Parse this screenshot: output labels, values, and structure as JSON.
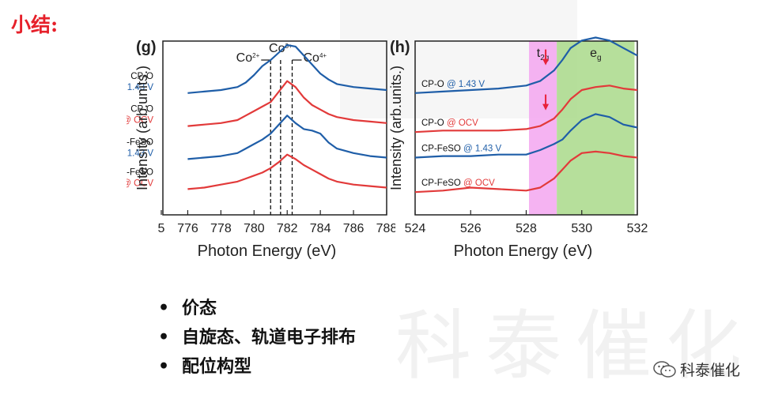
{
  "slide": {
    "title": "小结:",
    "bullets": [
      "价态",
      "自旋态、轨道电子排布",
      "配位构型"
    ],
    "watermark": "科泰催化",
    "logo_text": "科泰催化"
  },
  "colors": {
    "blue": "#1f5ea8",
    "red": "#e23a3a",
    "title_red": "#e6202a"
  },
  "chart_data": [
    {
      "panel": "(g)",
      "type": "line",
      "xlabel": "Photon Energy (eV)",
      "ylabel": "Intensity (arb.units.)",
      "xlim": [
        774.5,
        788
      ],
      "x_ticks": [
        "5",
        "776",
        "778",
        "780",
        "782",
        "784",
        "786",
        "788"
      ],
      "markers": [
        {
          "label": "Co2+",
          "x": 781.0,
          "direction": "left"
        },
        {
          "label": "Co3+",
          "x": 781.6,
          "direction": "none"
        },
        {
          "label": "Co4+",
          "x": 782.3,
          "direction": "right"
        }
      ],
      "series": [
        {
          "name": "CP-O @ 1.43 V",
          "label_main": "CP-O",
          "label_sub": "@ 1.43 V",
          "color": "blue",
          "x": [
            776,
            777,
            778,
            779,
            779.5,
            780,
            780.5,
            781,
            781.5,
            782,
            782.5,
            783,
            783.5,
            784,
            784.5,
            785,
            786,
            787,
            788
          ],
          "y": [
            0.78,
            0.79,
            0.8,
            0.82,
            0.85,
            0.9,
            0.96,
            1.0,
            1.05,
            1.1,
            1.09,
            1.03,
            0.97,
            0.91,
            0.87,
            0.84,
            0.82,
            0.81,
            0.8
          ]
        },
        {
          "name": "CP-O @ OCV",
          "label_main": "CP-O",
          "label_sub": "@ OCV",
          "color": "red",
          "x": [
            776,
            777,
            778,
            779,
            779.5,
            780,
            780.5,
            781,
            781.5,
            782,
            782.5,
            783,
            783.5,
            784,
            784.5,
            785,
            786,
            787,
            788
          ],
          "y": [
            0.56,
            0.57,
            0.58,
            0.6,
            0.63,
            0.66,
            0.69,
            0.72,
            0.79,
            0.86,
            0.82,
            0.75,
            0.7,
            0.67,
            0.64,
            0.62,
            0.6,
            0.59,
            0.58
          ]
        },
        {
          "name": "CP-FeSO @ 1.43 V",
          "label_main": "CP-FeSO",
          "label_sub": "@ 1.43 V",
          "color": "blue",
          "x": [
            776,
            777,
            778,
            779,
            779.5,
            780,
            780.5,
            781,
            781.5,
            782,
            782.5,
            783,
            783.5,
            784,
            784.5,
            785,
            786,
            787,
            788
          ],
          "y": [
            0.34,
            0.35,
            0.36,
            0.38,
            0.41,
            0.44,
            0.47,
            0.51,
            0.57,
            0.63,
            0.58,
            0.54,
            0.53,
            0.51,
            0.45,
            0.41,
            0.38,
            0.36,
            0.35
          ]
        },
        {
          "name": "CP-FeSO @ OCV",
          "label_main": "CP-FeSO",
          "label_sub": "@ OCV",
          "color": "red",
          "x": [
            776,
            777,
            778,
            779,
            779.5,
            780,
            780.5,
            781,
            781.5,
            782,
            782.5,
            783,
            783.5,
            784,
            784.5,
            785,
            786,
            787,
            788
          ],
          "y": [
            0.14,
            0.15,
            0.17,
            0.19,
            0.21,
            0.23,
            0.25,
            0.28,
            0.32,
            0.37,
            0.34,
            0.3,
            0.27,
            0.24,
            0.21,
            0.19,
            0.17,
            0.16,
            0.15
          ]
        }
      ]
    },
    {
      "panel": "(h)",
      "type": "line",
      "xlabel": "Photon Energy (eV)",
      "ylabel": "Intensity (arb.units.)",
      "xlim": [
        524,
        532
      ],
      "x_ticks": [
        "524",
        "526",
        "528",
        "530",
        "532"
      ],
      "regions": [
        {
          "label": "t2g",
          "x0": 528.1,
          "x1": 529.1,
          "color": "#f3a6f0"
        },
        {
          "label": "eg",
          "x0": 529.1,
          "x1": 531.9,
          "color": "#a9d98a"
        }
      ],
      "arrows_x": 528.7,
      "series": [
        {
          "name": "CP-O @ 1.43 V",
          "label_main": "CP-O",
          "label_sub": "@ 1.43 V",
          "color": "blue",
          "x": [
            524,
            525,
            526,
            527,
            528,
            528.5,
            529,
            529.3,
            529.6,
            530,
            530.5,
            531,
            531.5,
            532
          ],
          "y": [
            0.78,
            0.79,
            0.8,
            0.81,
            0.83,
            0.86,
            0.93,
            1.0,
            1.08,
            1.13,
            1.15,
            1.13,
            1.08,
            1.03
          ]
        },
        {
          "name": "CP-O @ OCV",
          "label_main": "CP-O",
          "label_sub": "@ OCV",
          "color": "red",
          "x": [
            524,
            525,
            526,
            527,
            528,
            528.5,
            529,
            529.3,
            529.6,
            530,
            530.5,
            531,
            531.5,
            532
          ],
          "y": [
            0.52,
            0.53,
            0.53,
            0.53,
            0.54,
            0.56,
            0.61,
            0.67,
            0.74,
            0.8,
            0.82,
            0.83,
            0.81,
            0.8
          ]
        },
        {
          "name": "CP-FeSO @ 1.43 V",
          "label_main": "CP-FeSO",
          "label_sub": "@ 1.43 V",
          "color": "blue",
          "x": [
            524,
            525,
            526,
            527,
            528,
            528.5,
            529,
            529.3,
            529.6,
            530,
            530.5,
            531,
            531.5,
            532
          ],
          "y": [
            0.35,
            0.36,
            0.36,
            0.37,
            0.37,
            0.4,
            0.44,
            0.47,
            0.53,
            0.6,
            0.64,
            0.62,
            0.57,
            0.55
          ]
        },
        {
          "name": "CP-FeSO @ OCV",
          "label_main": "CP-FeSO",
          "label_sub": "@ OCV",
          "color": "red",
          "x": [
            524,
            525,
            526,
            527,
            528,
            528.5,
            529,
            529.3,
            529.6,
            530,
            530.5,
            531,
            531.5,
            532
          ],
          "y": [
            0.12,
            0.13,
            0.15,
            0.14,
            0.13,
            0.15,
            0.21,
            0.27,
            0.33,
            0.38,
            0.39,
            0.38,
            0.36,
            0.35
          ]
        }
      ]
    }
  ]
}
